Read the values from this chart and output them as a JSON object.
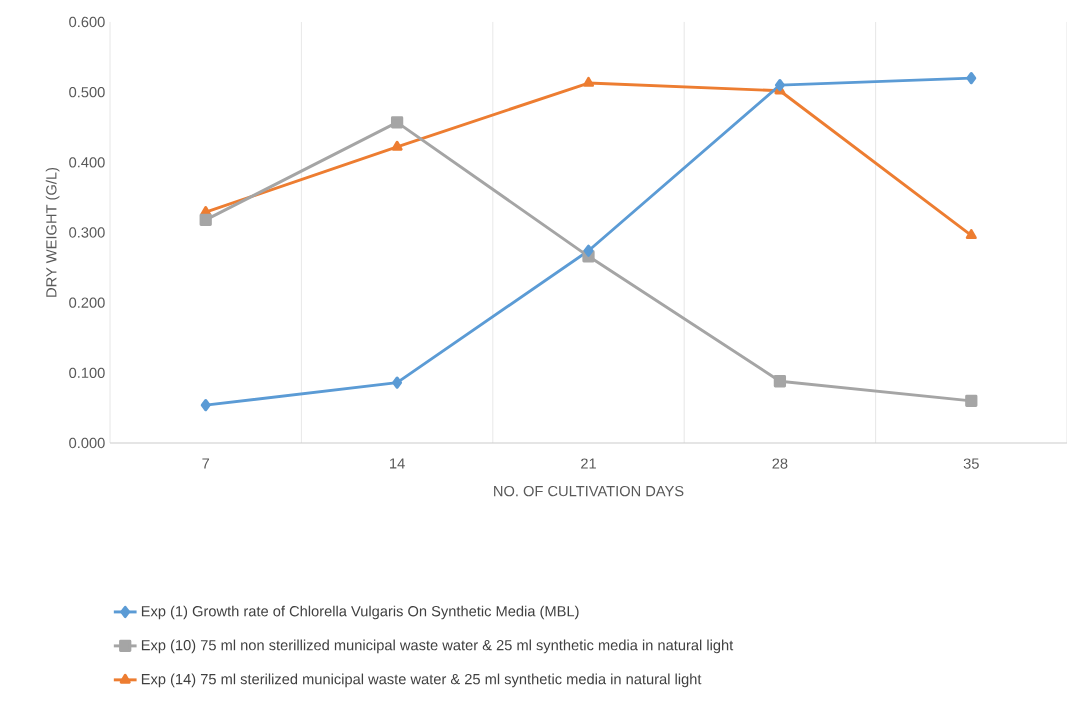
{
  "chart_data": {
    "type": "line",
    "categories": [
      "7",
      "14",
      "21",
      "28",
      "35"
    ],
    "xlabel": "NO. OF CULTIVATION DAYS",
    "ylabel": "DRY WEIGHT (G/L)",
    "ylim": [
      0,
      0.6
    ],
    "yticks": [
      {
        "value": 0,
        "label": "0.000"
      },
      {
        "value": 0.1,
        "label": "0.100"
      },
      {
        "value": 0.2,
        "label": "0.200"
      },
      {
        "value": 0.3,
        "label": "0.300"
      },
      {
        "value": 0.4,
        "label": "0.400"
      },
      {
        "value": 0.5,
        "label": "0.500"
      },
      {
        "value": 0.6,
        "label": "0.600"
      }
    ],
    "grid": "x",
    "legend": "bottom",
    "line_style": "solid",
    "series": [
      {
        "name": "Exp (1) Growth rate of Chlorella Vulgaris On Synthetic Media (MBL)",
        "color": "#5b9bd5",
        "marker": "diamond",
        "values": [
          0.054,
          0.086,
          0.274,
          0.51,
          0.52
        ]
      },
      {
        "name": "Exp (10) 75 ml non sterillized municipal waste water & 25 ml synthetic media in natural light",
        "color": "#a5a5a5",
        "marker": "square",
        "values": [
          0.318,
          0.457,
          0.266,
          0.088,
          0.06
        ]
      },
      {
        "name": "Exp (14) 75 ml sterilized municipal waste water & 25 ml synthetic media in natural light",
        "color": "#ed7d31",
        "marker": "triangle",
        "values": [
          0.329,
          0.422,
          0.513,
          0.502,
          0.296
        ]
      }
    ]
  }
}
